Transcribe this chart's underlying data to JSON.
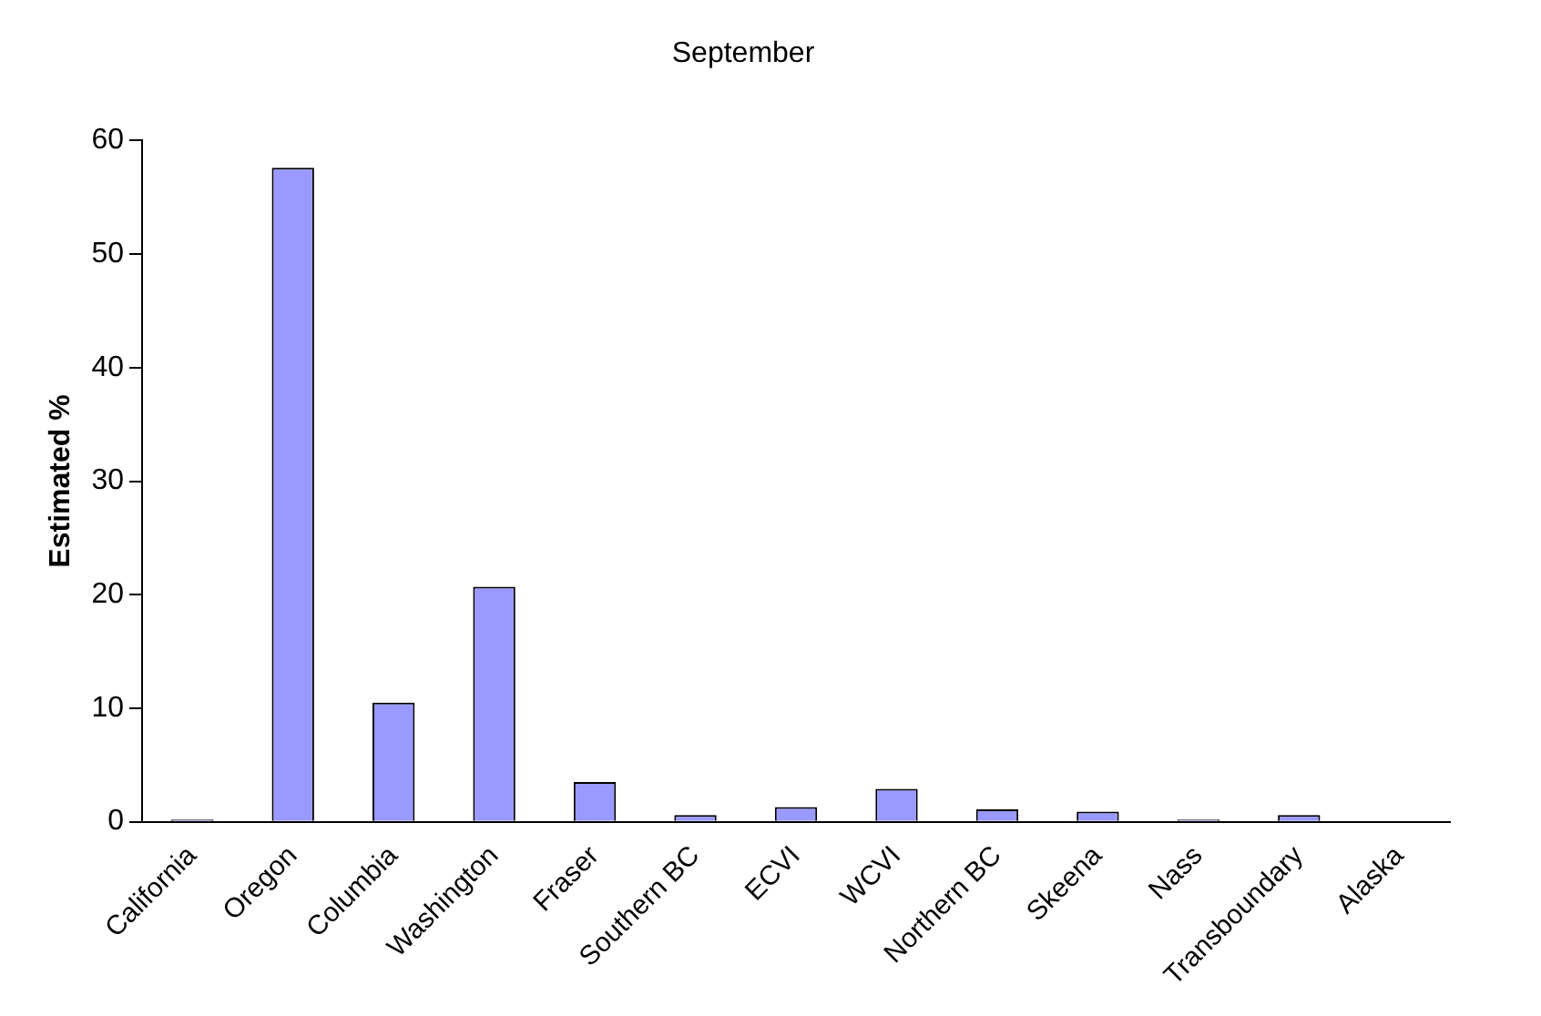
{
  "chart_data": {
    "type": "bar",
    "title": "September",
    "ylabel": "Estimated %",
    "categories": [
      "California",
      "Oregon",
      "Columbia",
      "Washington",
      "Fraser",
      "Southern BC",
      "ECVI",
      "WCVI",
      "Northern BC",
      "Skeena",
      "Nass",
      "Transboundary",
      "Alaska"
    ],
    "values": [
      0.2,
      57.6,
      10.5,
      20.7,
      3.5,
      0.6,
      1.3,
      2.9,
      1.1,
      0.9,
      0.2,
      0.6,
      0
    ],
    "color": "#9999ff",
    "ylim": [
      0,
      60
    ],
    "yticks": [
      0,
      10,
      20,
      30,
      40,
      50,
      60
    ],
    "grid": false,
    "legend": false
  }
}
